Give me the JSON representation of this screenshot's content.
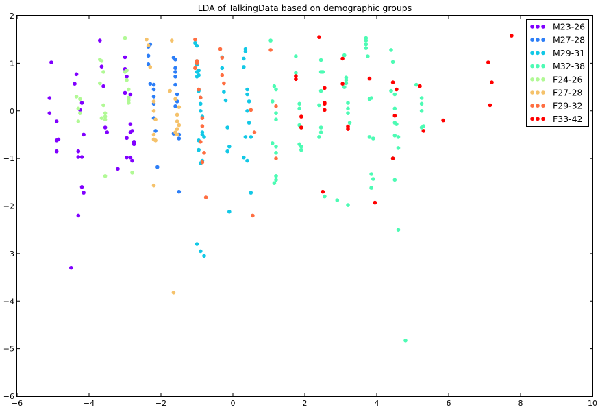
{
  "chart_data": {
    "type": "scatter",
    "title": "LDA of TalkingData based on demographic groups",
    "xlabel": "",
    "ylabel": "",
    "xlim": [
      -6,
      10
    ],
    "ylim": [
      -6,
      2
    ],
    "xticks": [
      "−6",
      "−4",
      "−2",
      "0",
      "2",
      "4",
      "6",
      "8",
      "10"
    ],
    "yticks": [
      "2",
      "1",
      "0",
      "−1",
      "−2",
      "−3",
      "−4",
      "−5",
      "−6"
    ],
    "grid": false,
    "legend_position": "top-right",
    "series": [
      {
        "name": "M23-26",
        "color": "#8000ff",
        "points": [
          [
            -5.05,
            1.02
          ],
          [
            -5.1,
            0.27
          ],
          [
            -5.1,
            -0.05
          ],
          [
            -4.9,
            -0.22
          ],
          [
            -4.9,
            -0.62
          ],
          [
            -4.85,
            -0.6
          ],
          [
            -4.9,
            -0.85
          ],
          [
            -4.35,
            0.77
          ],
          [
            -4.4,
            0.57
          ],
          [
            -4.25,
            0.02
          ],
          [
            -4.2,
            0.17
          ],
          [
            -4.3,
            -0.85
          ],
          [
            -4.3,
            -0.97
          ],
          [
            -4.2,
            -0.97
          ],
          [
            -4.15,
            -0.5
          ],
          [
            -4.2,
            -1.6
          ],
          [
            -4.15,
            -1.72
          ],
          [
            -4.3,
            -2.2
          ],
          [
            -4.5,
            -3.3
          ],
          [
            -3.7,
            1.48
          ],
          [
            -3.65,
            0.93
          ],
          [
            -3.6,
            0.52
          ],
          [
            -3.55,
            -0.35
          ],
          [
            -3.5,
            -0.45
          ],
          [
            -3.2,
            -1.22
          ],
          [
            -3.0,
            1.13
          ],
          [
            -3.0,
            0.88
          ],
          [
            -2.95,
            0.72
          ],
          [
            -3.0,
            0.38
          ],
          [
            -2.85,
            0.35
          ],
          [
            -2.95,
            -0.57
          ],
          [
            -2.85,
            -0.28
          ],
          [
            -2.85,
            -0.45
          ],
          [
            -2.8,
            -0.42
          ],
          [
            -2.75,
            -0.65
          ],
          [
            -2.75,
            -0.7
          ],
          [
            -2.95,
            -0.98
          ],
          [
            -2.85,
            -0.98
          ],
          [
            -2.8,
            -1.05
          ]
        ]
      },
      {
        "name": "M27-28",
        "color": "#2c7ef7",
        "points": [
          [
            -2.35,
            1.35
          ],
          [
            -2.3,
            1.4
          ],
          [
            -2.35,
            1.16
          ],
          [
            -2.35,
            0.98
          ],
          [
            -2.3,
            0.57
          ],
          [
            -2.2,
            0.55
          ],
          [
            -2.2,
            0.45
          ],
          [
            -2.2,
            0.3
          ],
          [
            -2.2,
            0.15
          ],
          [
            -2.2,
            -0.15
          ],
          [
            -2.15,
            -0.42
          ],
          [
            -2.1,
            -1.18
          ],
          [
            -1.65,
            1.12
          ],
          [
            -1.6,
            1.08
          ],
          [
            -1.6,
            0.9
          ],
          [
            -1.6,
            0.82
          ],
          [
            -1.6,
            0.72
          ],
          [
            -1.6,
            0.55
          ],
          [
            -1.55,
            0.35
          ],
          [
            -1.55,
            0.2
          ],
          [
            -1.6,
            0.1
          ],
          [
            -1.65,
            -0.48
          ],
          [
            -1.5,
            -0.5
          ],
          [
            -1.5,
            -0.58
          ],
          [
            -1.5,
            -1.7
          ]
        ]
      },
      {
        "name": "M29-31",
        "color": "#12c8e6",
        "points": [
          [
            -1.05,
            1.43
          ],
          [
            -1.0,
            1.37
          ],
          [
            -1.0,
            1.05
          ],
          [
            -1.0,
            0.97
          ],
          [
            -0.95,
            0.85
          ],
          [
            -1.0,
            0.82
          ],
          [
            -0.95,
            0.75
          ],
          [
            -1.0,
            0.72
          ],
          [
            -0.95,
            0.45
          ],
          [
            -0.95,
            0.42
          ],
          [
            -0.9,
            0.28
          ],
          [
            -0.9,
            0.15
          ],
          [
            -0.9,
            0.0
          ],
          [
            -0.85,
            -0.12
          ],
          [
            -0.85,
            -0.45
          ],
          [
            -0.85,
            -0.5
          ],
          [
            -0.8,
            -0.55
          ],
          [
            -0.95,
            -0.62
          ],
          [
            -0.95,
            -0.82
          ],
          [
            -0.9,
            -1.1
          ],
          [
            -0.85,
            -1.05
          ],
          [
            -1.0,
            -2.8
          ],
          [
            -0.9,
            -2.95
          ],
          [
            -0.8,
            -3.05
          ],
          [
            0.35,
            1.3
          ],
          [
            0.35,
            1.25
          ],
          [
            0.3,
            1.1
          ],
          [
            0.3,
            0.92
          ],
          [
            0.4,
            0.45
          ],
          [
            0.4,
            0.35
          ],
          [
            0.45,
            0.2
          ],
          [
            0.4,
            0.0
          ],
          [
            0.45,
            -0.25
          ],
          [
            0.5,
            -0.55
          ],
          [
            0.35,
            -0.55
          ],
          [
            0.3,
            -0.98
          ],
          [
            0.4,
            -1.05
          ],
          [
            0.5,
            -1.72
          ],
          [
            -0.3,
            1.13
          ],
          [
            -0.3,
            0.9
          ],
          [
            -0.25,
            0.4
          ],
          [
            -0.2,
            0.22
          ],
          [
            -0.15,
            -0.35
          ],
          [
            -0.1,
            -0.75
          ],
          [
            -0.15,
            -0.85
          ],
          [
            -0.1,
            -2.12
          ]
        ]
      },
      {
        "name": "M32-38",
        "color": "#4dfbb4",
        "points": [
          [
            1.05,
            1.48
          ],
          [
            1.15,
            0.52
          ],
          [
            1.2,
            0.45
          ],
          [
            1.1,
            0.2
          ],
          [
            1.2,
            -0.05
          ],
          [
            1.2,
            -0.18
          ],
          [
            1.1,
            -0.68
          ],
          [
            1.2,
            -0.75
          ],
          [
            1.2,
            -0.88
          ],
          [
            1.2,
            -1.37
          ],
          [
            1.2,
            -1.45
          ],
          [
            1.15,
            -1.52
          ],
          [
            1.75,
            1.15
          ],
          [
            1.75,
            0.8
          ],
          [
            1.85,
            0.15
          ],
          [
            1.85,
            0.05
          ],
          [
            1.85,
            -0.3
          ],
          [
            1.9,
            -0.35
          ],
          [
            1.85,
            -0.7
          ],
          [
            1.9,
            -0.75
          ],
          [
            1.9,
            -0.82
          ],
          [
            2.45,
            1.07
          ],
          [
            2.45,
            0.82
          ],
          [
            2.5,
            0.82
          ],
          [
            2.45,
            0.42
          ],
          [
            2.4,
            0.12
          ],
          [
            2.45,
            -0.35
          ],
          [
            2.45,
            -0.45
          ],
          [
            2.4,
            -0.55
          ],
          [
            2.55,
            -1.8
          ],
          [
            2.9,
            -1.88
          ],
          [
            3.1,
            1.17
          ],
          [
            3.15,
            0.7
          ],
          [
            3.15,
            0.65
          ],
          [
            3.15,
            0.58
          ],
          [
            3.1,
            0.5
          ],
          [
            3.2,
            0.17
          ],
          [
            3.2,
            0.05
          ],
          [
            3.2,
            -0.05
          ],
          [
            3.25,
            -0.25
          ],
          [
            3.2,
            -1.98
          ],
          [
            3.7,
            1.53
          ],
          [
            3.7,
            1.48
          ],
          [
            3.7,
            1.4
          ],
          [
            3.7,
            1.32
          ],
          [
            3.75,
            1.15
          ],
          [
            3.85,
            0.27
          ],
          [
            3.8,
            0.25
          ],
          [
            3.8,
            -0.55
          ],
          [
            3.9,
            -0.58
          ],
          [
            3.85,
            -1.33
          ],
          [
            3.9,
            -1.43
          ],
          [
            3.85,
            -1.62
          ],
          [
            4.4,
            1.28
          ],
          [
            4.45,
            1.03
          ],
          [
            4.4,
            0.42
          ],
          [
            4.5,
            0.35
          ],
          [
            4.5,
            0.05
          ],
          [
            4.5,
            -0.25
          ],
          [
            4.55,
            -0.28
          ],
          [
            4.5,
            -0.52
          ],
          [
            4.6,
            -0.55
          ],
          [
            4.6,
            -0.78
          ],
          [
            4.45,
            -1.0
          ],
          [
            4.5,
            -1.45
          ],
          [
            4.6,
            -2.5
          ],
          [
            4.8,
            -4.83
          ],
          [
            5.1,
            0.55
          ],
          [
            5.25,
            0.27
          ],
          [
            5.25,
            0.15
          ],
          [
            5.25,
            0.0
          ],
          [
            5.25,
            -0.35
          ],
          [
            5.3,
            -0.32
          ]
        ]
      },
      {
        "name": "F24-26",
        "color": "#b1f995",
        "points": [
          [
            -4.35,
            0.3
          ],
          [
            -4.25,
            0.25
          ],
          [
            -4.3,
            0.05
          ],
          [
            -4.25,
            -0.05
          ],
          [
            -4.3,
            -0.22
          ],
          [
            -3.7,
            1.08
          ],
          [
            -3.65,
            1.05
          ],
          [
            -3.6,
            0.82
          ],
          [
            -3.7,
            0.58
          ],
          [
            -3.6,
            0.12
          ],
          [
            -3.55,
            -0.05
          ],
          [
            -3.55,
            -0.12
          ],
          [
            -3.65,
            -0.15
          ],
          [
            -3.55,
            -0.18
          ],
          [
            -3.55,
            -1.37
          ],
          [
            -3.0,
            1.53
          ],
          [
            -2.95,
            0.85
          ],
          [
            -3.0,
            0.82
          ],
          [
            -2.95,
            0.65
          ],
          [
            -2.9,
            0.45
          ],
          [
            -2.9,
            0.28
          ],
          [
            -2.9,
            0.22
          ],
          [
            -2.9,
            0.17
          ],
          [
            -2.8,
            -1.3
          ]
        ]
      },
      {
        "name": "F27-28",
        "color": "#f5c26b",
        "points": [
          [
            -2.4,
            1.5
          ],
          [
            -2.35,
            1.38
          ],
          [
            -2.3,
            0.92
          ],
          [
            -2.2,
            0.2
          ],
          [
            -2.2,
            0.0
          ],
          [
            -2.15,
            -0.18
          ],
          [
            -2.2,
            -0.5
          ],
          [
            -2.2,
            -0.6
          ],
          [
            -2.15,
            -0.62
          ],
          [
            -2.2,
            -1.57
          ],
          [
            -1.7,
            1.48
          ],
          [
            -1.75,
            0.42
          ],
          [
            -1.6,
            0.25
          ],
          [
            -1.5,
            0.08
          ],
          [
            -1.55,
            -0.08
          ],
          [
            -1.55,
            -0.22
          ],
          [
            -1.5,
            -0.3
          ],
          [
            -1.55,
            -0.38
          ],
          [
            -1.6,
            -0.45
          ],
          [
            -1.55,
            -0.5
          ],
          [
            -1.65,
            -3.82
          ]
        ]
      },
      {
        "name": "F29-32",
        "color": "#ff6e41",
        "points": [
          [
            -1.05,
            1.5
          ],
          [
            -1.0,
            1.05
          ],
          [
            -1.0,
            1.0
          ],
          [
            -1.05,
            0.9
          ],
          [
            -0.95,
            0.45
          ],
          [
            -0.9,
            0.28
          ],
          [
            -0.85,
            -0.15
          ],
          [
            -0.85,
            -0.32
          ],
          [
            -0.9,
            -0.65
          ],
          [
            -0.8,
            -0.88
          ],
          [
            -0.85,
            -1.08
          ],
          [
            -0.75,
            -1.82
          ],
          [
            -0.35,
            1.3
          ],
          [
            -0.3,
            1.12
          ],
          [
            -0.3,
            0.75
          ],
          [
            -0.25,
            0.58
          ],
          [
            0.5,
            0.02
          ],
          [
            0.6,
            -0.45
          ],
          [
            0.55,
            -2.2
          ],
          [
            1.05,
            1.28
          ],
          [
            1.2,
            0.1
          ],
          [
            1.2,
            -1.0
          ]
        ]
      },
      {
        "name": "F33-42",
        "color": "#ff0000",
        "points": [
          [
            1.75,
            0.73
          ],
          [
            1.75,
            0.67
          ],
          [
            1.9,
            -0.12
          ],
          [
            1.9,
            -0.35
          ],
          [
            2.4,
            1.55
          ],
          [
            2.55,
            0.48
          ],
          [
            2.55,
            0.17
          ],
          [
            2.55,
            0.15
          ],
          [
            2.55,
            0.02
          ],
          [
            2.5,
            -1.7
          ],
          [
            3.05,
            1.1
          ],
          [
            3.05,
            0.57
          ],
          [
            3.2,
            -0.33
          ],
          [
            3.2,
            -0.38
          ],
          [
            3.8,
            0.68
          ],
          [
            3.95,
            -1.93
          ],
          [
            4.45,
            0.6
          ],
          [
            4.55,
            0.45
          ],
          [
            4.5,
            -0.1
          ],
          [
            4.45,
            -1.0
          ],
          [
            5.2,
            0.52
          ],
          [
            5.3,
            -0.42
          ],
          [
            5.85,
            -0.2
          ],
          [
            7.1,
            1.02
          ],
          [
            7.15,
            0.12
          ],
          [
            7.2,
            0.6
          ],
          [
            7.75,
            1.58
          ]
        ]
      }
    ]
  }
}
